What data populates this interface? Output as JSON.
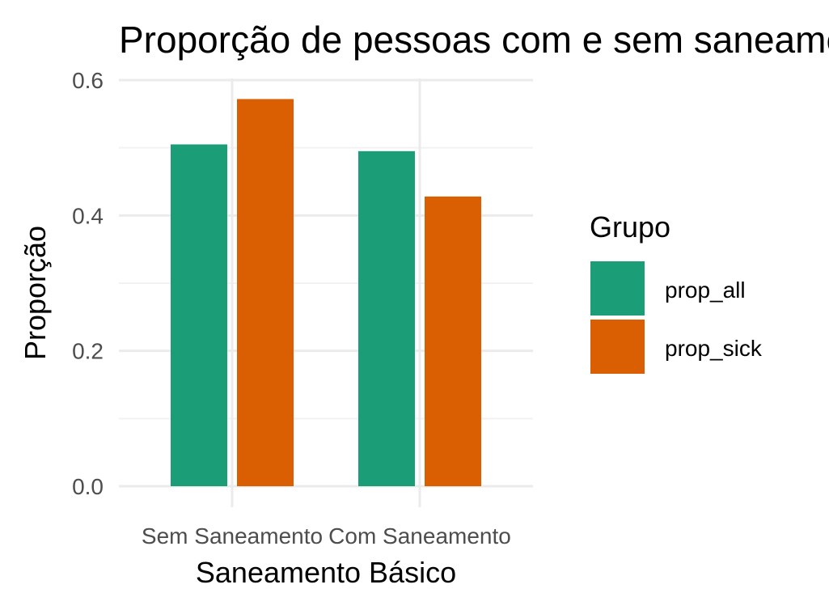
{
  "chart_data": {
    "type": "bar",
    "title": "Proporção de pessoas com e sem saneamento",
    "xlabel": "Saneamento Básico",
    "ylabel": "Proporção",
    "categories": [
      "Sem Saneamento",
      "Com Saneamento"
    ],
    "series": [
      {
        "name": "prop_all",
        "values": [
          0.505,
          0.495
        ],
        "color": "#1b9e77"
      },
      {
        "name": "prop_sick",
        "values": [
          0.572,
          0.428
        ],
        "color": "#d95f02"
      }
    ],
    "ylim": [
      -0.03,
      0.62
    ],
    "yticks": [
      0.0,
      0.2,
      0.4,
      0.6
    ],
    "ytick_labels": [
      "0.0",
      "0.2",
      "0.4",
      "0.6"
    ],
    "legend": {
      "title": "Grupo",
      "position": "right"
    },
    "grid": true
  }
}
